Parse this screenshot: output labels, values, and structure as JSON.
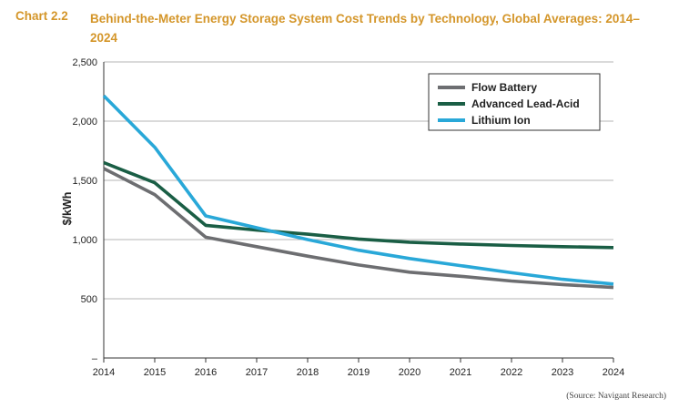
{
  "header": {
    "chart_number": "Chart 2.2",
    "title": "Behind-the-Meter Energy Storage System Cost Trends by Technology, Global Averages: 2014–2024"
  },
  "source": "(Source: Navigant Research)",
  "colors": {
    "flow_battery": "#6d6e71",
    "advanced_lead_acid": "#1a5e45",
    "lithium_ion": "#29a8d8",
    "title": "#d4962a"
  },
  "chart_data": {
    "type": "line",
    "title": "Behind-the-Meter Energy Storage System Cost Trends by Technology, Global Averages: 2014–2024",
    "xlabel": "",
    "ylabel": "$/kWh",
    "x": [
      "2014",
      "2015",
      "2016",
      "2017",
      "2018",
      "2019",
      "2020",
      "2021",
      "2022",
      "2023",
      "2024"
    ],
    "ylim": [
      0,
      2500
    ],
    "yticks": [
      0,
      500,
      1000,
      1500,
      2000,
      2500
    ],
    "ytick_labels": [
      "–",
      "500",
      "1,000",
      "1,500",
      "2,000",
      "2,500"
    ],
    "grid": "horizontal",
    "legend_position": "top-right",
    "series": [
      {
        "name": "Flow Battery",
        "color": "#6d6e71",
        "values": [
          1600,
          1380,
          1020,
          940,
          860,
          785,
          725,
          690,
          650,
          620,
          595
        ]
      },
      {
        "name": "Advanced Lead-Acid",
        "color": "#1a5e45",
        "values": [
          1650,
          1480,
          1120,
          1080,
          1045,
          1005,
          978,
          962,
          950,
          940,
          932
        ]
      },
      {
        "name": "Lithium Ion",
        "color": "#29a8d8",
        "values": [
          2215,
          1780,
          1200,
          1100,
          1000,
          910,
          840,
          780,
          720,
          665,
          625
        ]
      }
    ]
  }
}
